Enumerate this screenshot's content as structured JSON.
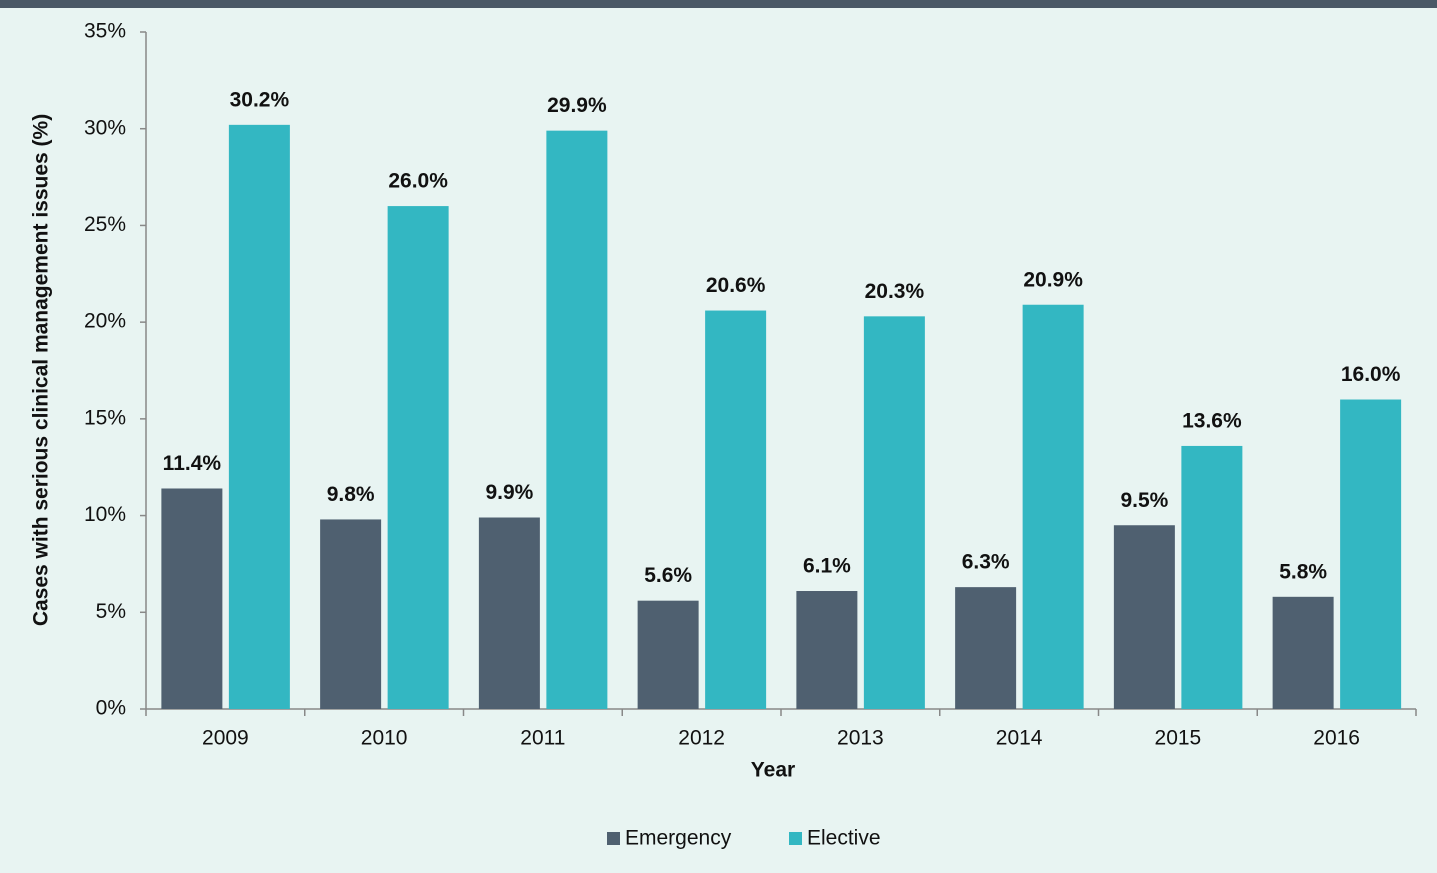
{
  "chart_data": {
    "type": "bar",
    "categories": [
      "2009",
      "2010",
      "2011",
      "2012",
      "2013",
      "2014",
      "2015",
      "2016"
    ],
    "series": [
      {
        "name": "Emergency",
        "color": "#4f6070",
        "values": [
          11.4,
          9.8,
          9.9,
          5.6,
          6.1,
          6.3,
          9.5,
          5.8
        ],
        "value_labels": [
          "11.4%",
          "9.8%",
          "9.9%",
          "5.6%",
          "6.1%",
          "6.3%",
          "9.5%",
          "5.8%"
        ]
      },
      {
        "name": "Elective",
        "color": "#33b7c2",
        "values": [
          30.2,
          26.0,
          29.9,
          20.6,
          20.3,
          20.9,
          13.6,
          16.0
        ],
        "value_labels": [
          "30.2%",
          "26.0%",
          "29.9%",
          "20.6%",
          "20.3%",
          "20.9%",
          "13.6%",
          "16.0%"
        ]
      }
    ],
    "xlabel": "Year",
    "ylabel": "Cases with serious clinical management issues (%)",
    "ylim": [
      0,
      35
    ],
    "yticks": [
      {
        "value": 0,
        "label": "0%"
      },
      {
        "value": 5,
        "label": "5%"
      },
      {
        "value": 10,
        "label": "10%"
      },
      {
        "value": 15,
        "label": "15%"
      },
      {
        "value": 20,
        "label": "20%"
      },
      {
        "value": 25,
        "label": "25%"
      },
      {
        "value": 30,
        "label": "30%"
      },
      {
        "value": 35,
        "label": "35%"
      }
    ],
    "legend": "bottom"
  }
}
